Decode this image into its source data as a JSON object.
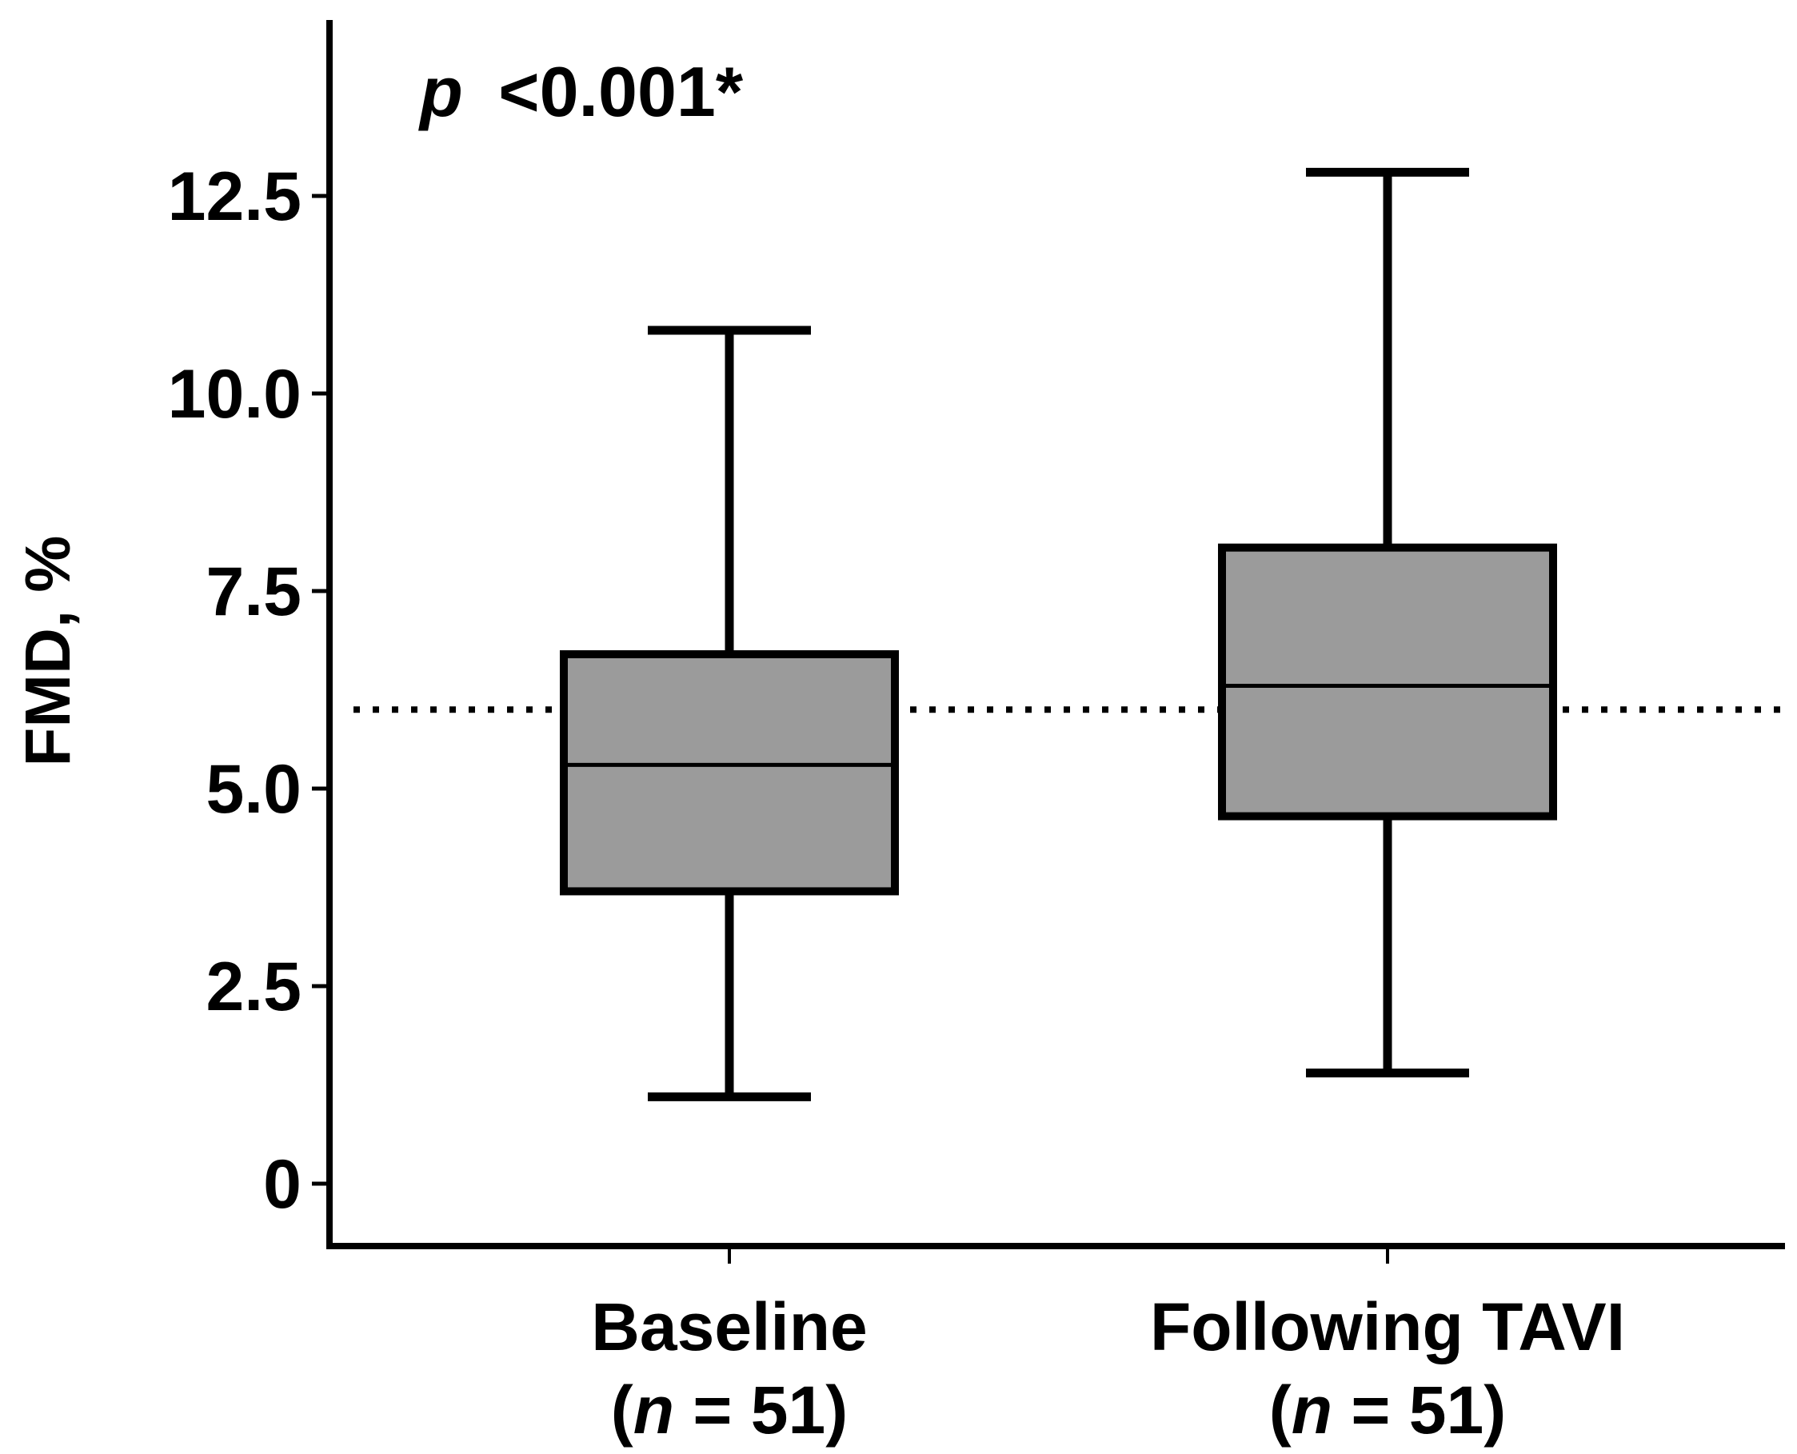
{
  "chart_data": {
    "type": "boxplot",
    "title": "",
    "xlabel": "",
    "ylabel": "FMD, %",
    "ylim": [
      -0.8,
      14.7
    ],
    "yticks": [
      "0",
      "2.5",
      "5.0",
      "7.5",
      "10.0",
      "12.5"
    ],
    "ytick_values": [
      0,
      2.5,
      5.0,
      7.5,
      10.0,
      12.5
    ],
    "reference_line": {
      "value": 6.0,
      "style": "dotted"
    },
    "annotation": {
      "p_symbol": "p",
      "text": "<0.001*"
    },
    "categories": [
      {
        "label": "Baseline",
        "n_open": "(",
        "n_symbol": "n",
        "n_rest": " = 51)"
      },
      {
        "label": "Following TAVI",
        "n_open": "(",
        "n_symbol": "n",
        "n_rest": " = 51)"
      }
    ],
    "series": [
      {
        "name": "Baseline",
        "whisker_low": 1.1,
        "q1": 3.7,
        "median": 5.3,
        "q3": 6.7,
        "whisker_high": 10.8
      },
      {
        "name": "Following TAVI",
        "whisker_low": 1.4,
        "q1": 4.65,
        "median": 6.3,
        "q3": 8.05,
        "whisker_high": 12.8
      }
    ],
    "colors": {
      "box_fill": "#9b9b9b",
      "line": "#000000"
    }
  }
}
